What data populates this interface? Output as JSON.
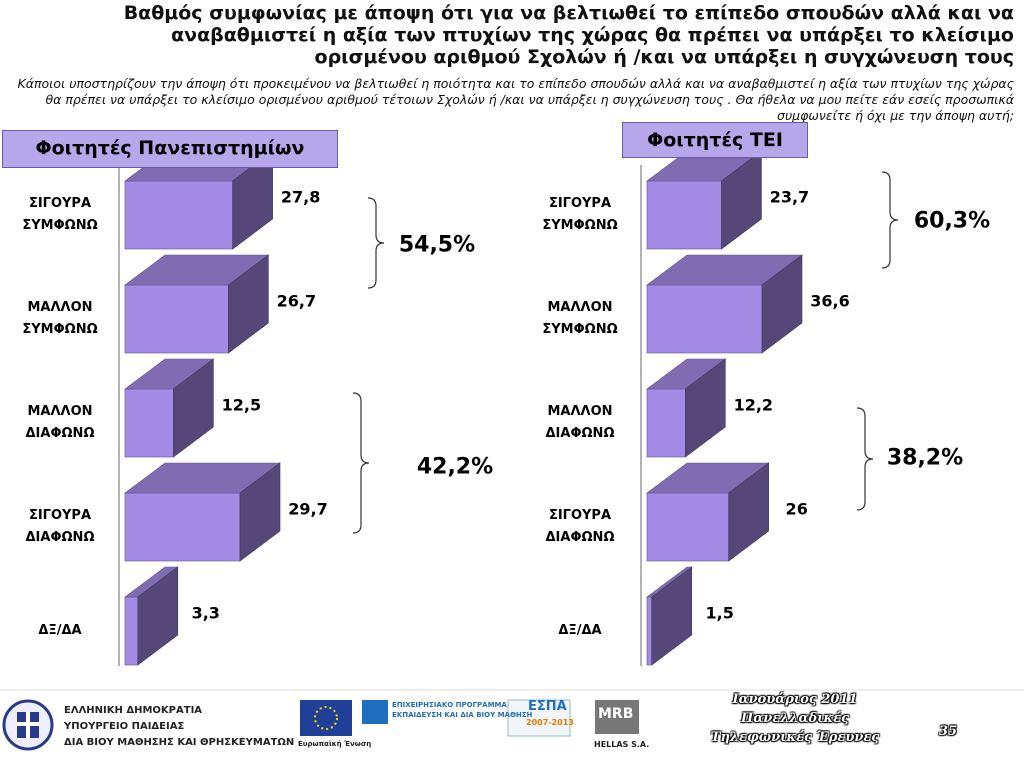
{
  "title": "Βαθμός συμφωνίας με άποψη ότι για να βελτιωθεί το επίπεδο σπουδών αλλά και να αναβαθμιστεί η αξία των πτυχίων της χώρας θα πρέπει να υπάρξει το κλείσιμο ορισμένου αριθμού Σχολών ή /και να υπάρξει η συγχώνευση τους",
  "subtitle": "Κάποιοι υποστηρίζουν την άποψη ότι προκειμένου να βελτιωθεί η ποιότητα και το επίπεδο σπουδών αλλά και να αναβαθμιστεί η αξία των πτυχίων της χώρας θα πρέπει να υπάρξει το κλείσιμο ορισμένου αριθμού τέτοιων Σχολών ή /και να υπάρξει η συγχώνευση τους . Θα ήθελα να μου πείτε εάν εσείς προσωπικά συμφωνείτε ή όχι με την άποψη αυτή;",
  "chart_data": [
    {
      "type": "bar",
      "title": "Φοιτητές Πανεπιστημίων",
      "categories": [
        "ΣΙΓΟΥΡΑ ΣΥΜΦΩΝΩ",
        "ΜΑΛΛΟΝ ΣΥΜΦΩΝΩ",
        "ΜΑΛΛΟΝ ΔΙΑΦΩΝΩ",
        "ΣΙΓΟΥΡΑ ΔΙΑΦΩΝΩ",
        "ΔΞ/ΔΑ"
      ],
      "values": [
        27.8,
        26.7,
        12.5,
        29.7,
        3.3
      ],
      "value_labels": [
        "27,8",
        "26,7",
        "12,5",
        "29,7",
        "3,3"
      ],
      "color": "#a48be6",
      "annotations": [
        "54,5%",
        "42,2%"
      ]
    },
    {
      "type": "bar",
      "title": "Φοιτητές ΤΕΙ",
      "categories": [
        "ΣΙΓΟΥΡΑ ΣΥΜΦΩΝΩ",
        "ΜΑΛΛΟΝ ΣΥΜΦΩΝΩ",
        "ΜΑΛΛΟΝ ΔΙΑΦΩΝΩ",
        "ΣΙΓΟΥΡΑ ΔΙΑΦΩΝΩ",
        "ΔΞ/ΔΑ"
      ],
      "values": [
        23.7,
        36.6,
        12.2,
        26,
        1.5
      ],
      "value_labels": [
        "23,7",
        "36,6",
        "12,2",
        "26",
        "1,5"
      ],
      "color": "#a48be6",
      "annotations": [
        "60,3%",
        "38,2%"
      ]
    }
  ],
  "footer": {
    "ministry": [
      "ΕΛΛΗΝΙΚΗ ΔΗΜΟΚΡΑΤΙΑ",
      "ΥΠΟΥΡΓΕΙΟ ΠΑΙΔΕΙΑΣ",
      "ΔΙΑ ΒΙΟΥ ΜΑΘΗΣΗΣ ΚΑΙ ΘΡΗΣΚΕΥΜΑΤΩΝ"
    ],
    "eu": "Ευρωπαϊκή Ένωση",
    "programme": [
      "ΕΠΙΧΕΙΡΗΣΙΑΚΟ ΠΡΟΓΡΑΜΜΑ",
      "ΕΚΠΑΙΔΕΥΣΗ ΚΑΙ ΔΙΑ ΒΙΟΥ ΜΑΘΗΣΗ"
    ],
    "espa": [
      "ΕΣΠΑ",
      "2007-2013"
    ],
    "mrb": [
      "MRB",
      "HELLAS S.A."
    ],
    "date": [
      "Ιανουάριος 2011",
      "Πανελλαδικές",
      "Τηλεφωνικές Έρευνες"
    ],
    "page": "35"
  }
}
